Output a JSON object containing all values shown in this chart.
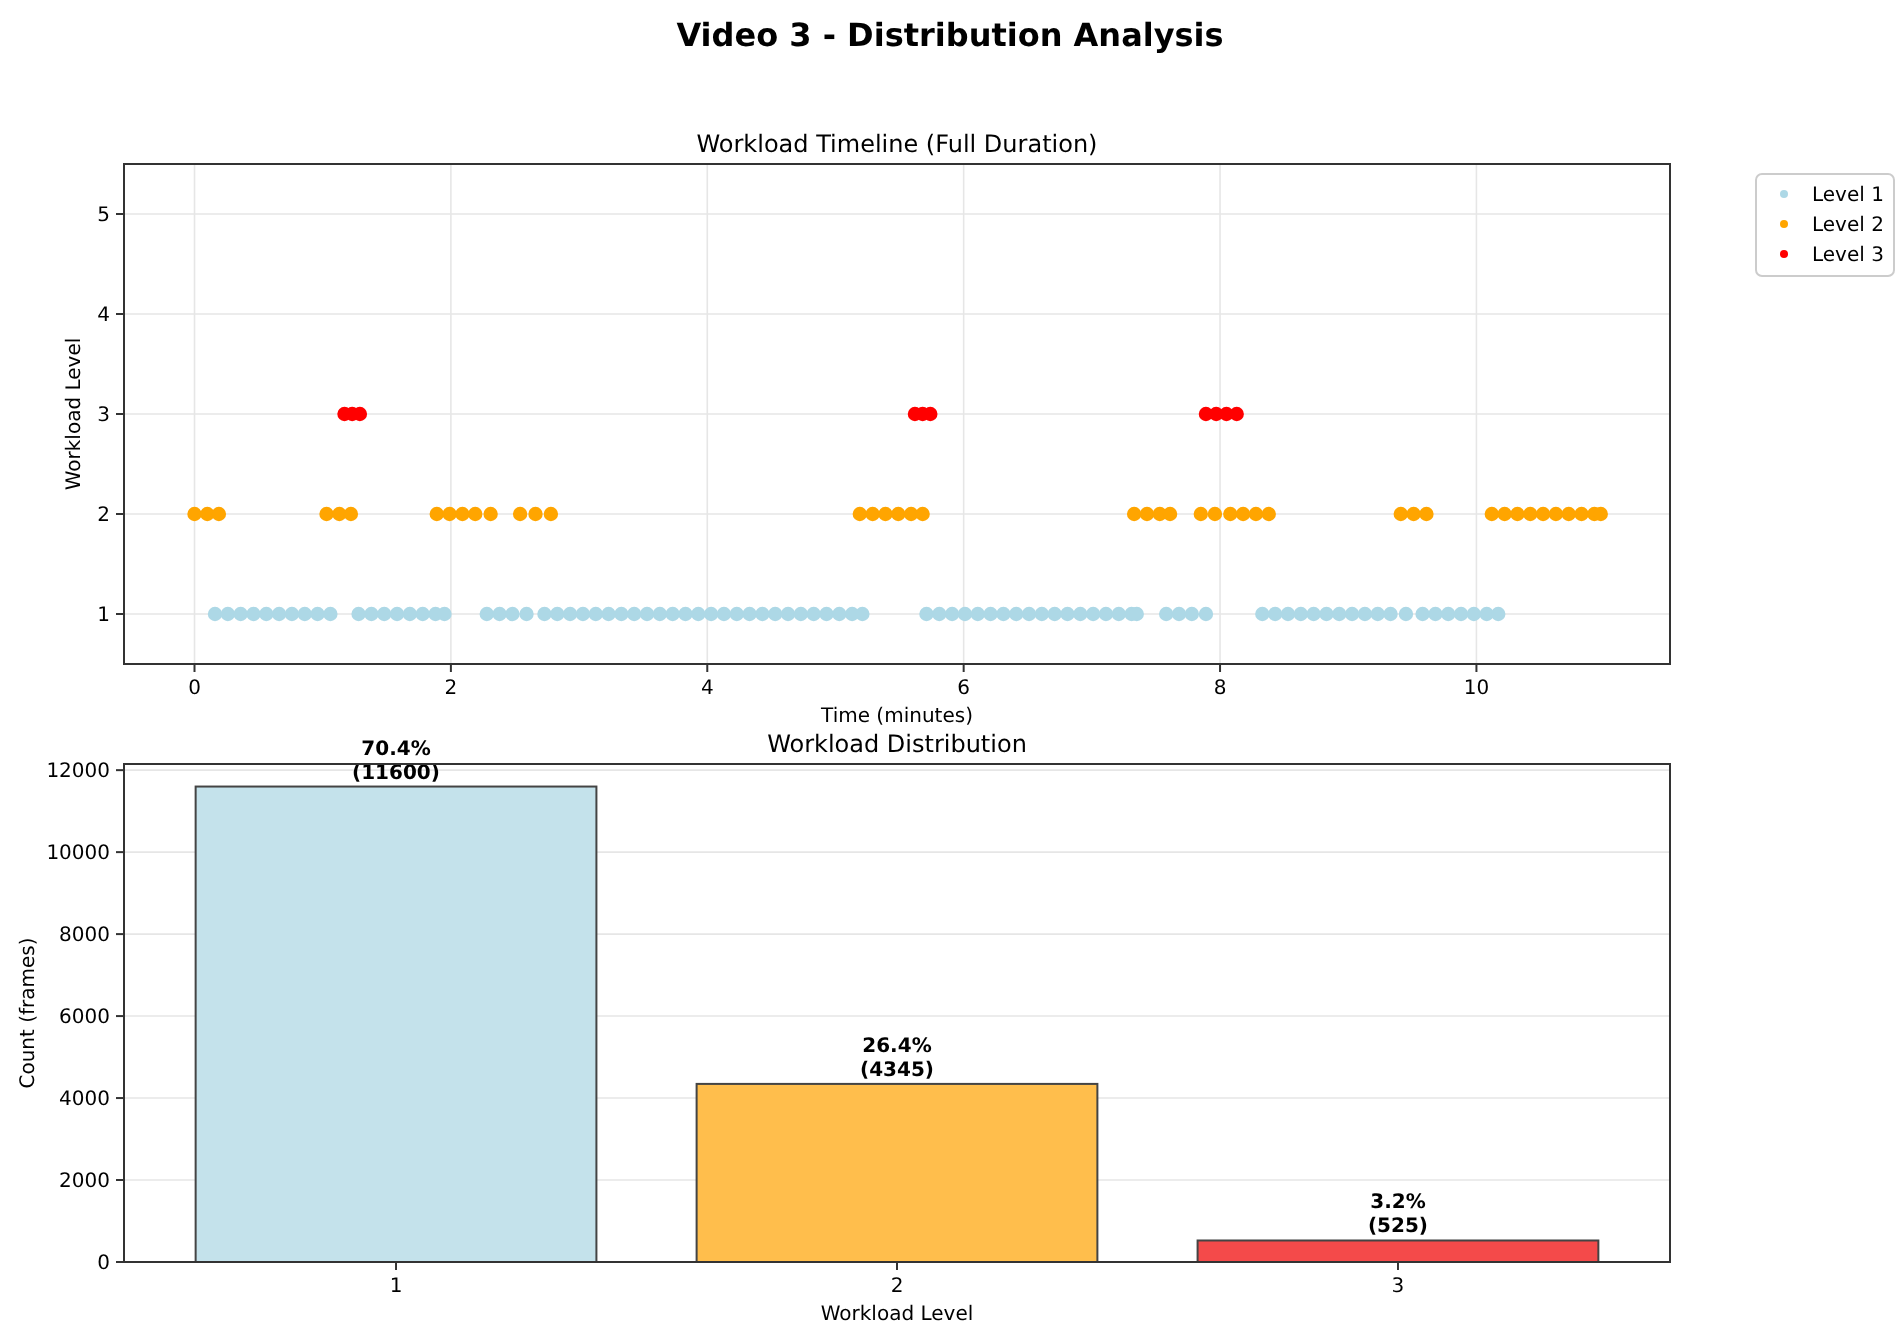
{
  "chart_data": [
    {
      "type": "scatter",
      "title": "Video 3 - Distribution Analysis",
      "subtitle": "Workload Timeline (Full Duration)",
      "xlabel": "Time (minutes)",
      "ylabel": "Workload Level",
      "xlim": [
        -0.55,
        11.51
      ],
      "ylim": [
        0.5,
        5.5
      ],
      "xticks": [
        0,
        2,
        4,
        6,
        8,
        10
      ],
      "yticks": [
        1,
        2,
        3,
        4,
        5
      ],
      "grid": true,
      "legend": "top right",
      "marker": "circle",
      "series": [
        {
          "name": "Level 1",
          "color": "#add8e6",
          "x": [
            0.16,
            0.26,
            0.36,
            0.46,
            0.56,
            0.66,
            0.76,
            0.86,
            0.96,
            1.06,
            1.28,
            1.38,
            1.48,
            1.58,
            1.68,
            1.78,
            1.88,
            1.95,
            2.28,
            2.38,
            2.48,
            2.59,
            2.73,
            2.83,
            2.93,
            3.03,
            3.13,
            3.23,
            3.33,
            3.43,
            3.53,
            3.63,
            3.73,
            3.83,
            3.93,
            4.03,
            4.13,
            4.23,
            4.33,
            4.43,
            4.53,
            4.63,
            4.73,
            4.83,
            4.93,
            5.03,
            5.13,
            5.21,
            5.71,
            5.81,
            5.91,
            6.01,
            6.11,
            6.21,
            6.31,
            6.41,
            6.51,
            6.61,
            6.71,
            6.81,
            6.91,
            7.01,
            7.11,
            7.21,
            7.31,
            7.35,
            7.58,
            7.68,
            7.78,
            7.89,
            8.33,
            8.43,
            8.53,
            8.63,
            8.73,
            8.83,
            8.93,
            9.03,
            9.13,
            9.23,
            9.33,
            9.45,
            9.58,
            9.68,
            9.78,
            9.88,
            9.98,
            10.08,
            10.17
          ],
          "values": [
            1,
            1,
            1,
            1,
            1,
            1,
            1,
            1,
            1,
            1,
            1,
            1,
            1,
            1,
            1,
            1,
            1,
            1,
            1,
            1,
            1,
            1,
            1,
            1,
            1,
            1,
            1,
            1,
            1,
            1,
            1,
            1,
            1,
            1,
            1,
            1,
            1,
            1,
            1,
            1,
            1,
            1,
            1,
            1,
            1,
            1,
            1,
            1,
            1,
            1,
            1,
            1,
            1,
            1,
            1,
            1,
            1,
            1,
            1,
            1,
            1,
            1,
            1,
            1,
            1,
            1,
            1,
            1,
            1,
            1,
            1,
            1,
            1,
            1,
            1,
            1,
            1,
            1,
            1,
            1,
            1,
            1,
            1,
            1,
            1,
            1,
            1,
            1,
            1
          ]
        },
        {
          "name": "Level 2",
          "color": "#ffa500",
          "x": [
            0,
            0.1,
            0.19,
            1.03,
            1.13,
            1.22,
            1.89,
            1.99,
            2.09,
            2.19,
            2.31,
            2.54,
            2.66,
            2.78,
            5.19,
            5.29,
            5.39,
            5.49,
            5.59,
            5.68,
            7.33,
            7.43,
            7.53,
            7.61,
            7.85,
            7.96,
            8.08,
            8.18,
            8.28,
            8.38,
            9.41,
            9.51,
            9.61,
            10.12,
            10.22,
            10.32,
            10.42,
            10.52,
            10.62,
            10.72,
            10.82,
            10.92,
            10.97
          ],
          "values": [
            2,
            2,
            2,
            2,
            2,
            2,
            2,
            2,
            2,
            2,
            2,
            2,
            2,
            2,
            2,
            2,
            2,
            2,
            2,
            2,
            2,
            2,
            2,
            2,
            2,
            2,
            2,
            2,
            2,
            2,
            2,
            2,
            2,
            2,
            2,
            2,
            2,
            2,
            2,
            2,
            2,
            2,
            2
          ]
        },
        {
          "name": "Level 3",
          "color": "#ff0000",
          "x": [
            1.17,
            1.23,
            1.29,
            5.62,
            5.68,
            5.74,
            7.89,
            7.97,
            8.05,
            8.13
          ],
          "values": [
            3,
            3,
            3,
            3,
            3,
            3,
            3,
            3,
            3,
            3
          ]
        }
      ]
    },
    {
      "type": "bar",
      "title": "Workload Distribution",
      "xlabel": "Workload Level",
      "ylabel": "Count (frames)",
      "categories": [
        "1",
        "2",
        "3"
      ],
      "values": [
        11600,
        4345,
        525
      ],
      "colors": [
        "#c4e2eb",
        "#ffbe4c",
        "#f44a4a"
      ],
      "value_labels": [
        "70.4%\n(11600)",
        "26.4%\n(4345)",
        "3.2%\n(525)"
      ],
      "ylim": [
        0,
        12150
      ],
      "yticks": [
        0,
        2000,
        4000,
        6000,
        8000,
        10000,
        12000
      ],
      "grid": true
    }
  ]
}
